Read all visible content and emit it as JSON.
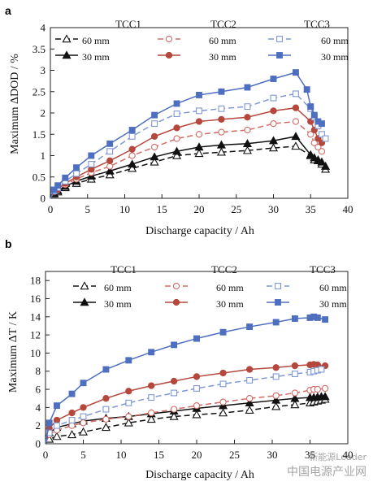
{
  "colors": {
    "black": "#111111",
    "red": "#b5473c",
    "blue": "#4e6fc0",
    "light_red": "#d36b66",
    "light_blue": "#7f98d4"
  },
  "watermark": {
    "line1": "新能源Leader",
    "line2": "中国电源产业网"
  },
  "chart_data": [
    {
      "panel": "a",
      "type": "line",
      "xlabel": "Discharge capacity / Ah",
      "ylabel": "Maximum ΔDOD / %",
      "xlim": [
        0,
        40
      ],
      "ylim": [
        0,
        4
      ],
      "xticks": [
        0,
        5,
        10,
        15,
        20,
        25,
        30,
        35,
        40
      ],
      "yticks": [
        0,
        0.5,
        1,
        1.5,
        2,
        2.5,
        3,
        3.5,
        4
      ],
      "yticklabels": [
        "0",
        "0.5",
        "1",
        "1.5",
        "2",
        "2.5",
        "3",
        "3.5",
        "4"
      ],
      "grid": false,
      "group_labels": [
        "TCC1",
        "TCC2",
        "TCC3"
      ],
      "series": [
        {
          "name": "60 mm",
          "color": "#111111",
          "dash": "7,4",
          "marker": "triangle-open",
          "x": [
            0,
            0.5,
            1,
            2,
            3.5,
            5.5,
            8,
            11,
            14,
            17,
            20,
            23,
            26.5,
            30,
            33,
            35,
            35.5,
            36,
            36.5,
            37
          ],
          "y": [
            0,
            0.1,
            0.15,
            0.25,
            0.35,
            0.45,
            0.55,
            0.7,
            0.85,
            1.0,
            1.05,
            1.08,
            1.12,
            1.18,
            1.22,
            1.0,
            0.9,
            0.88,
            0.8,
            0.68
          ]
        },
        {
          "name": "30 mm",
          "color": "#111111",
          "dash": "",
          "marker": "triangle-filled",
          "x": [
            0,
            0.5,
            1,
            2,
            3.5,
            5.5,
            8,
            11,
            14,
            17,
            20,
            23,
            26.5,
            30,
            33,
            35,
            35.5,
            36,
            36.5,
            37
          ],
          "y": [
            0,
            0.12,
            0.18,
            0.28,
            0.4,
            0.52,
            0.64,
            0.8,
            0.97,
            1.1,
            1.2,
            1.25,
            1.28,
            1.35,
            1.45,
            1.02,
            0.95,
            0.9,
            0.85,
            0.75
          ]
        },
        {
          "name": "60 mm",
          "color": "#d36b66",
          "dash": "7,4",
          "marker": "circle-open",
          "x": [
            0,
            0.5,
            1,
            2,
            3.5,
            5.5,
            8,
            11,
            14,
            17,
            20,
            23,
            26.5,
            30,
            33,
            35,
            35.5,
            36,
            36.5
          ],
          "y": [
            0,
            0.15,
            0.2,
            0.32,
            0.45,
            0.6,
            0.75,
            1.0,
            1.2,
            1.4,
            1.5,
            1.55,
            1.6,
            1.75,
            1.8,
            1.5,
            1.3,
            1.2,
            1.1
          ]
        },
        {
          "name": "30 mm",
          "color": "#b5473c",
          "dash": "",
          "marker": "circle-filled",
          "x": [
            0,
            0.5,
            1,
            2,
            3.5,
            5.5,
            8,
            11,
            14,
            17,
            20,
            23,
            26.5,
            30,
            33,
            35,
            35.5,
            36,
            36.5
          ],
          "y": [
            0,
            0.15,
            0.22,
            0.35,
            0.5,
            0.68,
            0.88,
            1.15,
            1.45,
            1.65,
            1.8,
            1.85,
            1.9,
            2.05,
            2.12,
            1.8,
            1.6,
            1.4,
            1.3
          ]
        },
        {
          "name": "60 mm",
          "color": "#7f98d4",
          "dash": "7,4",
          "marker": "square-open",
          "x": [
            0,
            0.5,
            1,
            2,
            3.5,
            5.5,
            8,
            11,
            14,
            17,
            20,
            23,
            26.5,
            30,
            33,
            35,
            35.5,
            36,
            36.5,
            37
          ],
          "y": [
            0,
            0.17,
            0.25,
            0.4,
            0.58,
            0.8,
            1.1,
            1.45,
            1.75,
            1.98,
            2.05,
            2.1,
            2.15,
            2.35,
            2.45,
            2.1,
            1.9,
            1.7,
            1.5,
            1.4
          ]
        },
        {
          "name": "30 mm",
          "color": "#4e6fc0",
          "dash": "",
          "marker": "square-filled",
          "x": [
            0,
            0.5,
            1,
            2,
            3.5,
            5.5,
            8,
            11,
            14,
            17,
            20,
            23,
            26.5,
            30,
            33,
            34.5,
            35,
            35.5,
            36,
            36.5
          ],
          "y": [
            0,
            0.2,
            0.3,
            0.48,
            0.72,
            1.0,
            1.28,
            1.6,
            1.95,
            2.22,
            2.42,
            2.5,
            2.6,
            2.8,
            2.95,
            2.55,
            2.15,
            1.95,
            1.8,
            1.75
          ]
        }
      ]
    },
    {
      "panel": "b",
      "type": "line",
      "xlabel": "Discharge capacity / Ah",
      "ylabel": "Maximum ΔT / K",
      "xlim": [
        0,
        40
      ],
      "ylim": [
        0,
        19
      ],
      "xticks": [
        0,
        5,
        10,
        15,
        20,
        25,
        30,
        35,
        40
      ],
      "yticks": [
        0,
        2,
        4,
        6,
        8,
        10,
        12,
        14,
        16,
        18
      ],
      "yticklabels": [
        "0",
        "2",
        "4",
        "6",
        "8",
        "10",
        "12",
        "14",
        "16",
        "18"
      ],
      "grid": false,
      "group_labels": [
        "TCC1",
        "TCC2",
        "TCC3"
      ],
      "series": [
        {
          "name": "60 mm",
          "color": "#111111",
          "dash": "7,4",
          "marker": "triangle-open",
          "x": [
            0,
            0.5,
            1.5,
            3.5,
            5,
            8,
            11,
            14,
            17,
            20,
            23.5,
            27,
            30.5,
            33,
            35,
            35.5,
            36,
            36.5,
            37
          ],
          "y": [
            0,
            0.5,
            0.8,
            1.0,
            1.3,
            1.8,
            2.3,
            2.7,
            3.0,
            3.2,
            3.4,
            3.7,
            4.1,
            4.3,
            4.5,
            4.6,
            4.7,
            4.8,
            4.9
          ]
        },
        {
          "name": "30 mm",
          "color": "#111111",
          "dash": "",
          "marker": "triangle-filled",
          "x": [
            0,
            0.5,
            1.5,
            3.5,
            5,
            8,
            11,
            14,
            17,
            20,
            23.5,
            27,
            30.5,
            33,
            35,
            35.5,
            36,
            36.5,
            37
          ],
          "y": [
            0,
            1.2,
            1.8,
            2.2,
            2.5,
            2.8,
            3.0,
            3.3,
            3.6,
            3.9,
            4.2,
            4.5,
            4.8,
            5.0,
            5.1,
            5.1,
            5.15,
            5.2,
            5.2
          ]
        },
        {
          "name": "60 mm",
          "color": "#d36b66",
          "dash": "7,4",
          "marker": "circle-open",
          "x": [
            0,
            0.5,
            1.5,
            3.5,
            5,
            8,
            11,
            14,
            17,
            20,
            23.5,
            27,
            30.5,
            33,
            35,
            35.5,
            36,
            37
          ],
          "y": [
            0,
            1.0,
            1.5,
            2.0,
            2.3,
            2.7,
            3.0,
            3.4,
            3.8,
            4.2,
            4.6,
            5.0,
            5.3,
            5.6,
            5.9,
            6.0,
            6.0,
            6.1
          ]
        },
        {
          "name": "30 mm",
          "color": "#b5473c",
          "dash": "",
          "marker": "circle-filled",
          "x": [
            0,
            0.5,
            1.5,
            3.5,
            5,
            8,
            11,
            14,
            17,
            20,
            23.5,
            27,
            30.5,
            33,
            35,
            35.5,
            36,
            37
          ],
          "y": [
            0,
            1.7,
            2.6,
            3.4,
            4.0,
            5.0,
            5.8,
            6.4,
            6.9,
            7.4,
            7.8,
            8.2,
            8.4,
            8.6,
            8.7,
            8.75,
            8.7,
            8.6
          ]
        },
        {
          "name": "60 mm",
          "color": "#7f98d4",
          "dash": "7,4",
          "marker": "square-open",
          "x": [
            0,
            0.5,
            1.5,
            3.5,
            5,
            8,
            11,
            14,
            17,
            20,
            23.5,
            27,
            30.5,
            33,
            35,
            35.5,
            36,
            36.5
          ],
          "y": [
            0,
            1.2,
            2.0,
            2.6,
            3.0,
            3.8,
            4.5,
            5.1,
            5.6,
            6.1,
            6.6,
            7.0,
            7.4,
            7.7,
            7.9,
            8.0,
            8.1,
            8.2
          ]
        },
        {
          "name": "30 mm",
          "color": "#4e6fc0",
          "dash": "",
          "marker": "square-filled",
          "x": [
            0,
            0.5,
            1.5,
            3.5,
            5,
            8,
            11,
            14,
            17,
            20,
            23.5,
            27,
            30.5,
            33,
            35,
            35.5,
            36,
            37
          ],
          "y": [
            0,
            2.3,
            4.2,
            5.5,
            6.7,
            8.2,
            9.2,
            10.1,
            10.9,
            11.6,
            12.3,
            12.9,
            13.4,
            13.8,
            13.9,
            14.0,
            13.9,
            13.7
          ]
        }
      ]
    }
  ]
}
